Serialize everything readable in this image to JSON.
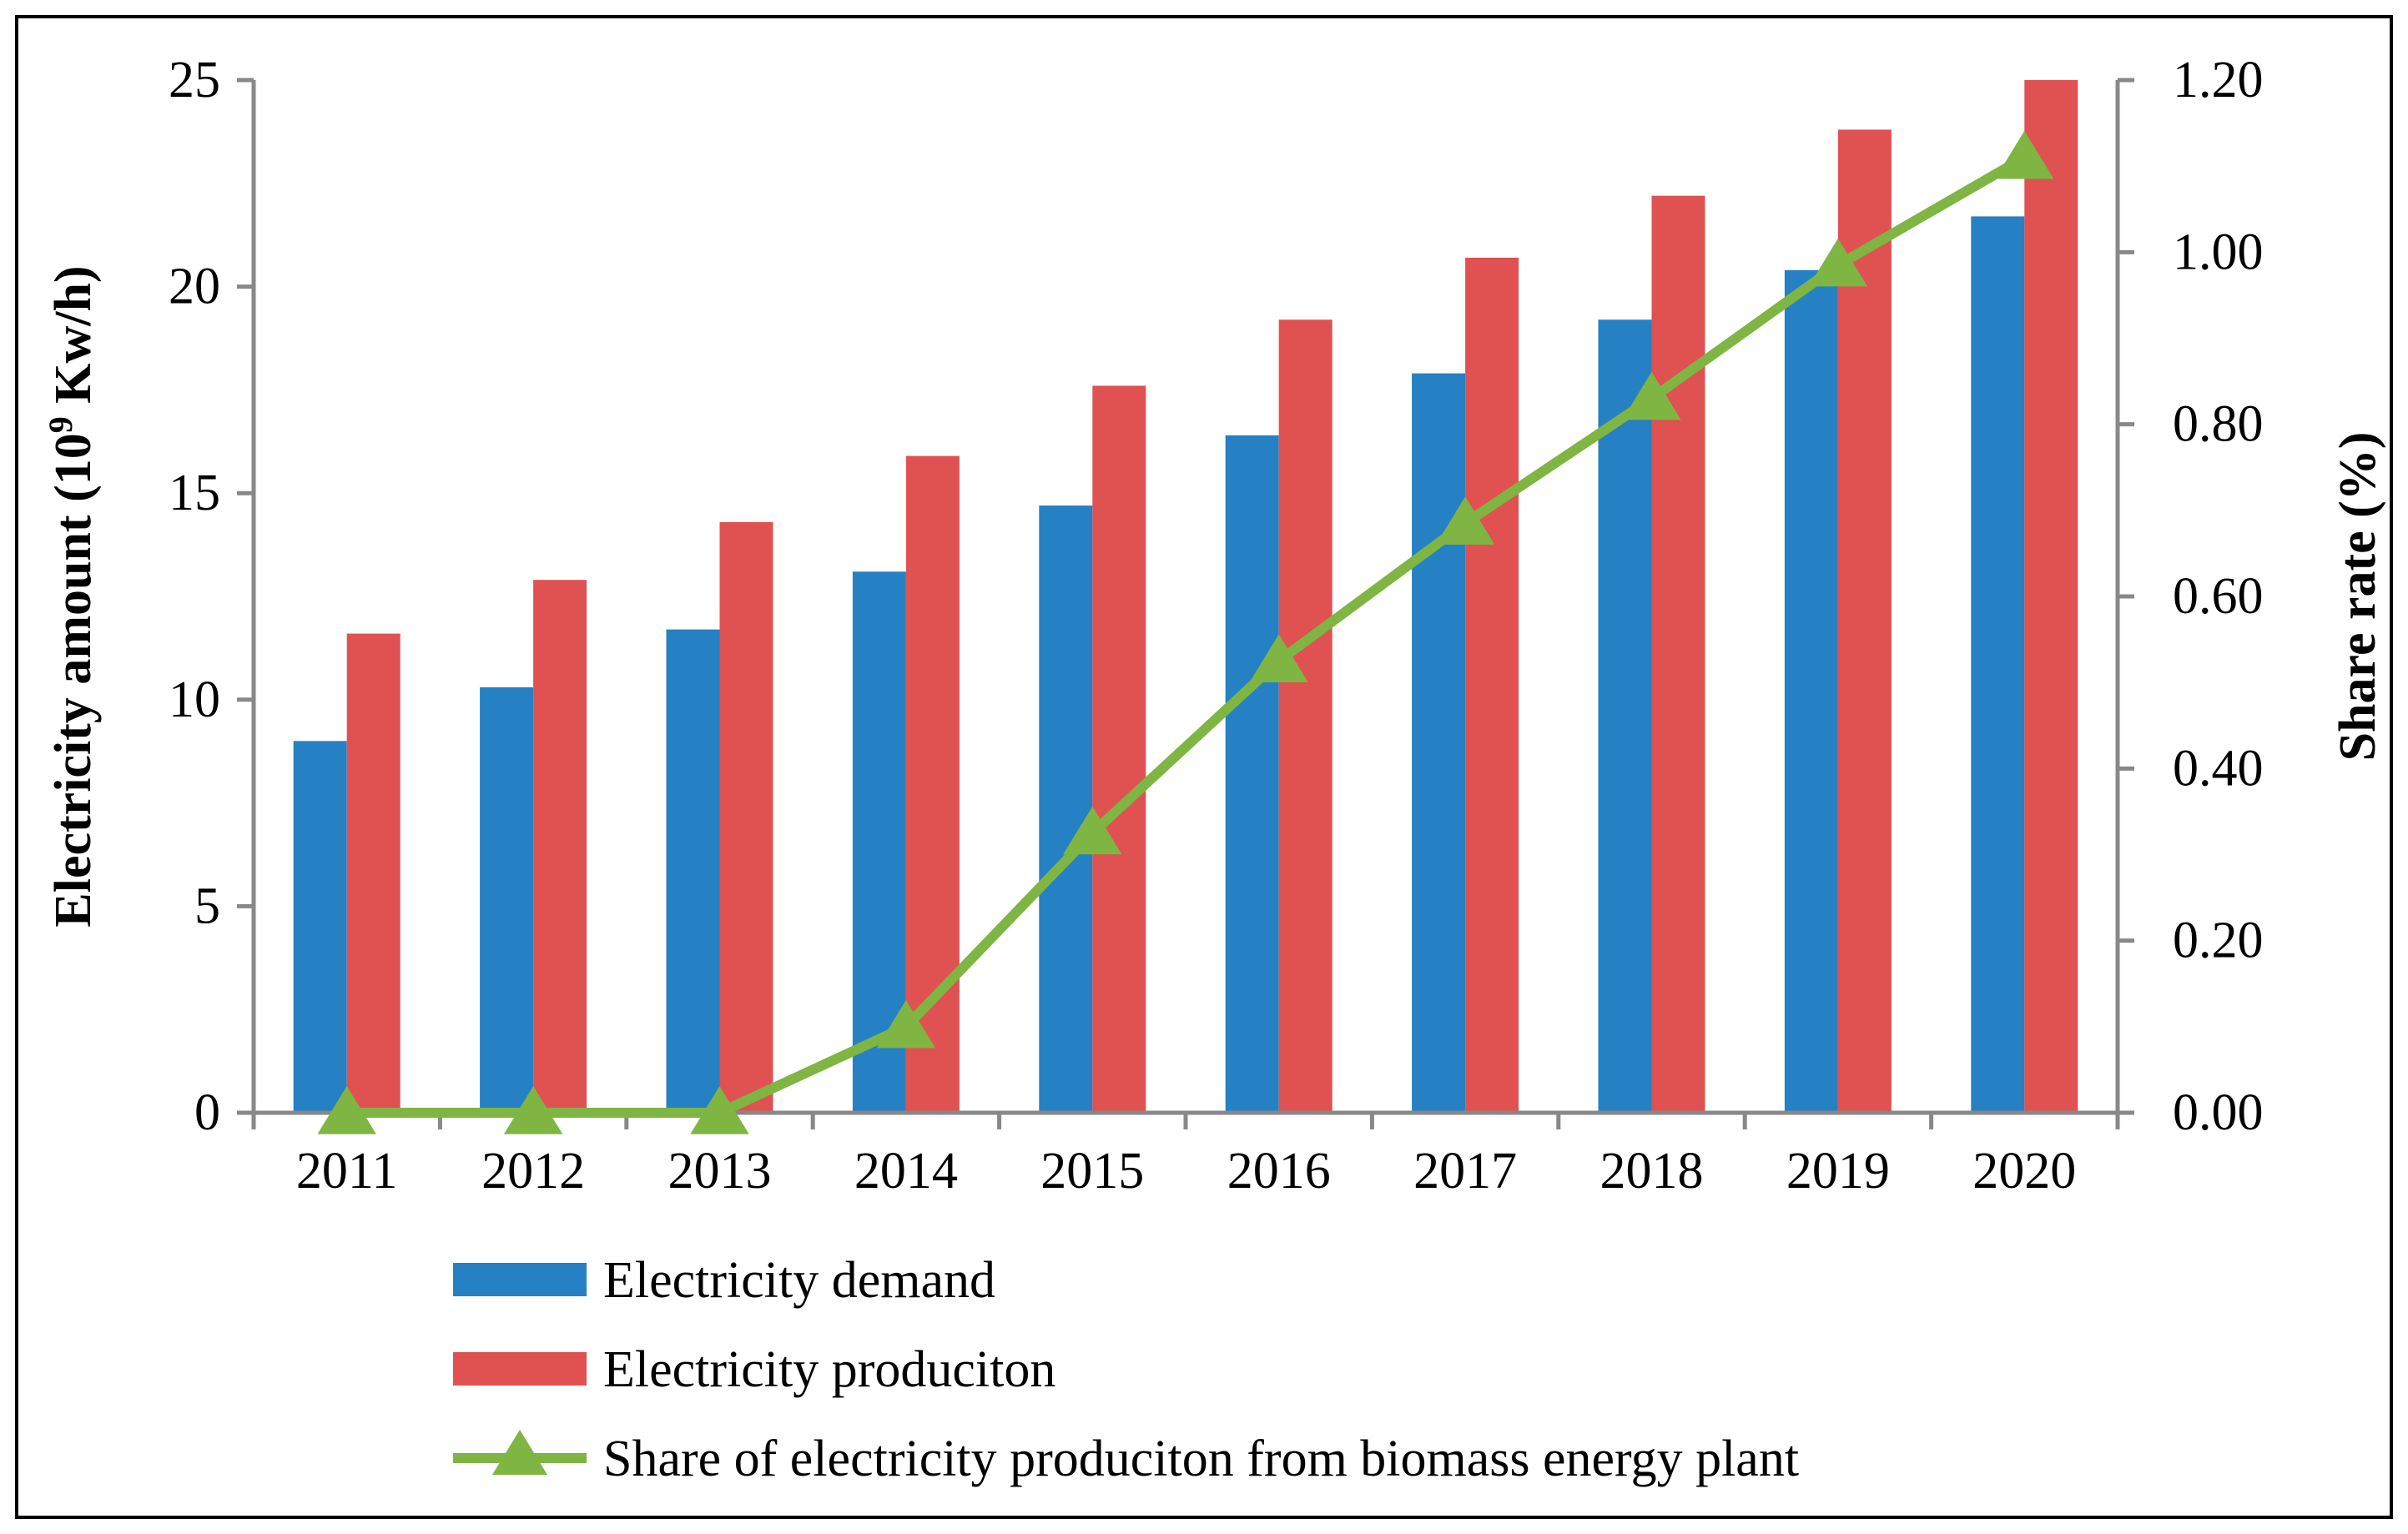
{
  "chart_data": {
    "type": "bar",
    "categories": [
      "2011",
      "2012",
      "2013",
      "2014",
      "2015",
      "2016",
      "2017",
      "2018",
      "2019",
      "2020"
    ],
    "series": [
      {
        "name": "Electricity demand",
        "kind": "bar",
        "axis": "left",
        "color": "#2581c4",
        "values": [
          9.0,
          10.3,
          11.7,
          13.1,
          14.7,
          16.4,
          17.9,
          19.2,
          20.4,
          21.7
        ]
      },
      {
        "name": "Electricity produciton",
        "kind": "bar",
        "axis": "left",
        "color": "#e05151",
        "values": [
          11.6,
          12.9,
          14.3,
          15.9,
          17.6,
          19.2,
          20.7,
          22.2,
          23.8,
          25.0
        ]
      },
      {
        "name": "Share of electricity produciton from biomass energy plant",
        "kind": "line",
        "axis": "right",
        "color": "#7fb542",
        "marker": "triangle",
        "values": [
          0.0,
          0.0,
          0.0,
          0.1,
          0.325,
          0.525,
          0.685,
          0.83,
          0.985,
          1.11
        ]
      }
    ],
    "y_left": {
      "label_main": "Electricity amount (10",
      "label_sup": "9",
      "label_end": " Kw/h)",
      "ylim": [
        0,
        25
      ],
      "ticks": [
        "0",
        "5",
        "10",
        "15",
        "20",
        "25"
      ],
      "tick_values": [
        0,
        5,
        10,
        15,
        20,
        25
      ]
    },
    "y_right": {
      "label": "Share rate (%)",
      "ylim": [
        0,
        1.2
      ],
      "ticks": [
        "0.00",
        "0.20",
        "0.40",
        "0.60",
        "0.80",
        "1.00",
        "1.20"
      ],
      "tick_values": [
        0,
        0.2,
        0.4,
        0.6,
        0.8,
        1.0,
        1.2
      ]
    },
    "legend": "bottom",
    "axis_color": "#888888",
    "frame_color": "#000000"
  }
}
